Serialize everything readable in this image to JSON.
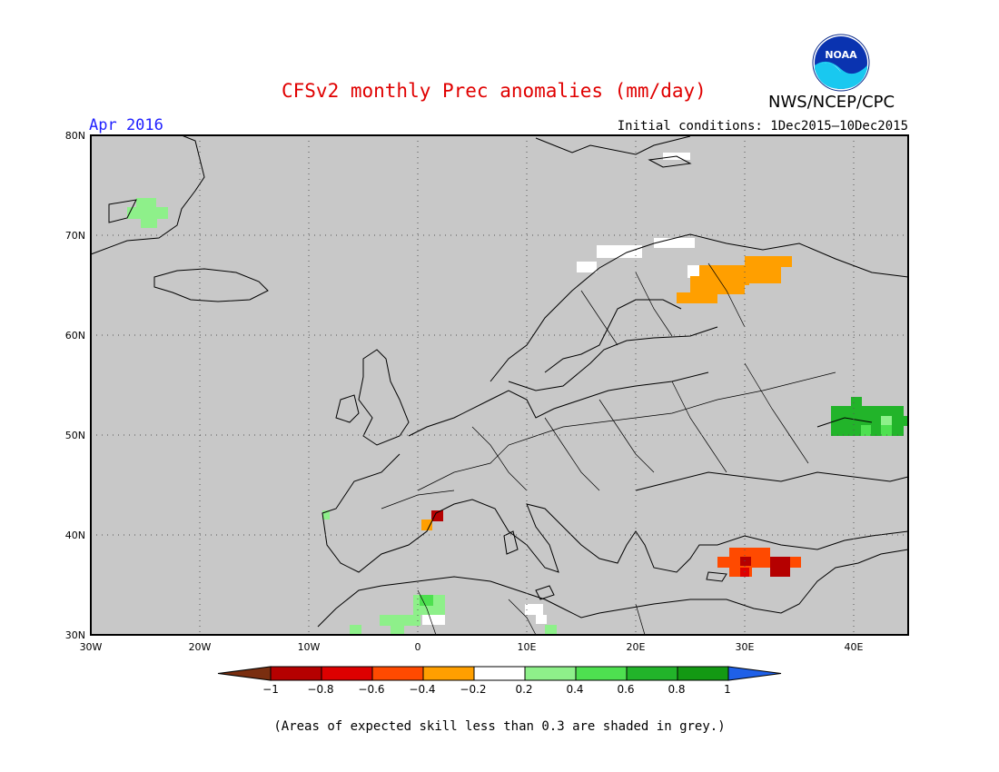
{
  "header": {
    "title": "CFSv2 monthly Prec anomalies (mm/day)",
    "agency": "NWS/NCEP/CPC",
    "logo_text": "NOAA",
    "month": "Apr 2016",
    "initial_conditions": "Initial conditions: 1Dec2015—10Dec2015"
  },
  "map": {
    "background_color": "#c8c8c8",
    "lat_labels": [
      "80N",
      "70N",
      "60N",
      "50N",
      "40N",
      "30N"
    ],
    "lon_labels": [
      "30W",
      "20W",
      "10W",
      "0",
      "10E",
      "20E",
      "30E",
      "40E"
    ],
    "grid": "dotted"
  },
  "legend": {
    "ticks": [
      "−1",
      "−0.8",
      "−0.6",
      "−0.4",
      "−0.2",
      "0.2",
      "0.4",
      "0.6",
      "0.8",
      "1"
    ],
    "colors": [
      "#7a2e10",
      "#b50000",
      "#dd0000",
      "#ff4a00",
      "#ff9f00",
      "#ffffff",
      "#8ef08a",
      "#4ee050",
      "#22b42a",
      "#139913",
      "#1f60e8"
    ]
  },
  "footnote": "(Areas of expected skill less than 0.3 are shaded in grey.)"
}
